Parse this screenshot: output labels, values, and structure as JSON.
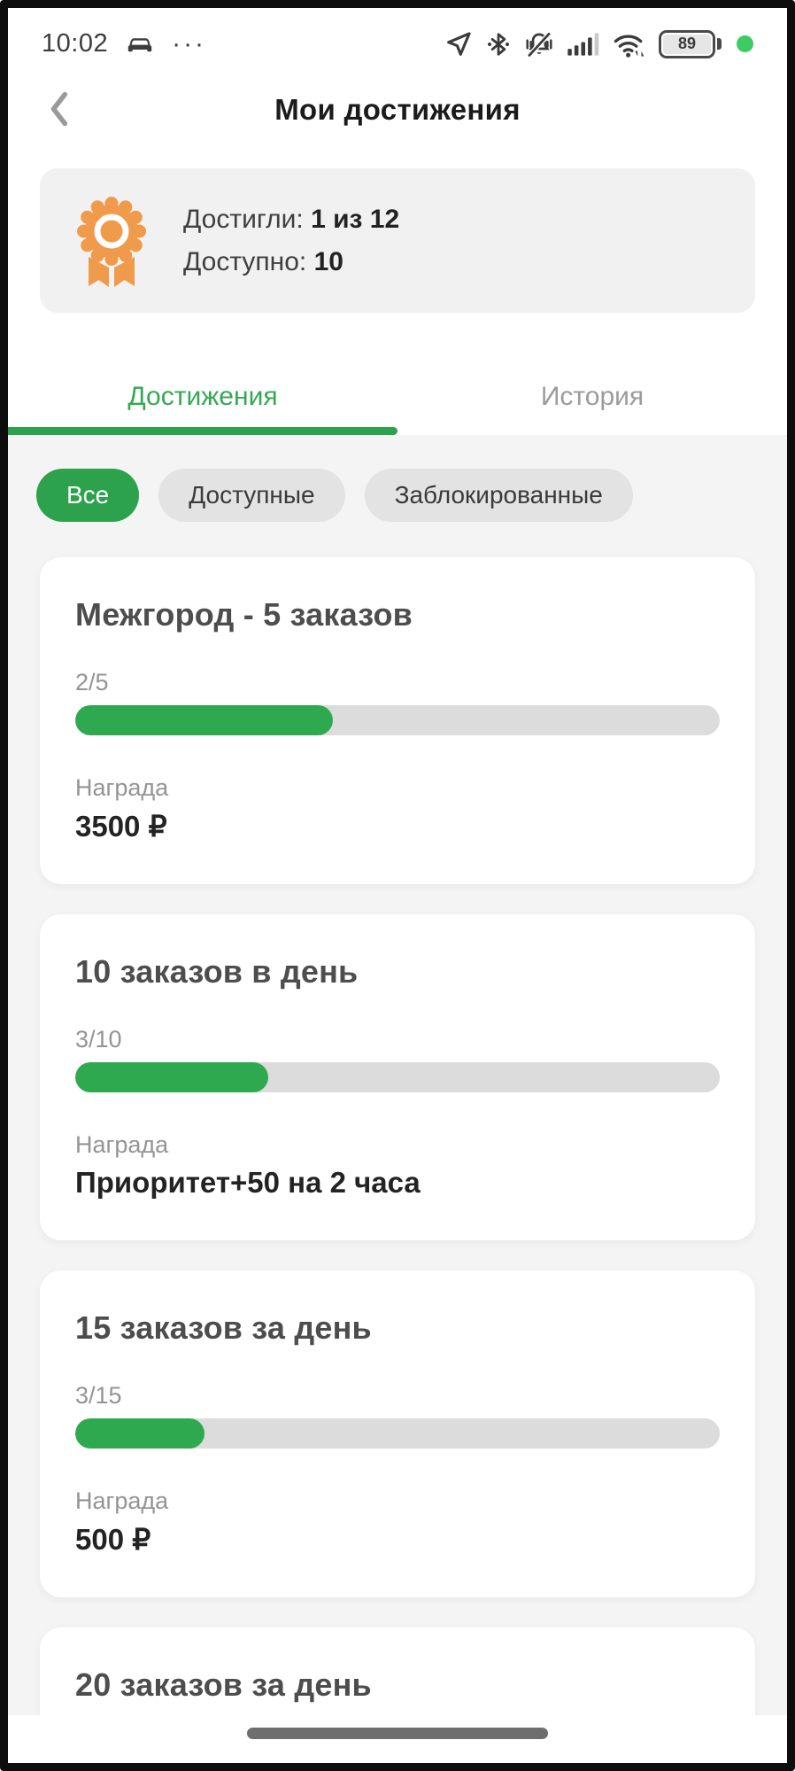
{
  "status_bar": {
    "time": "10:02",
    "overflow_dots": "···",
    "battery_percent": "89",
    "left_icons": [
      "car-icon",
      "overflow-dots"
    ],
    "right_icons": [
      "navigation-icon",
      "bluetooth-icon",
      "mute-vibrate-icon",
      "signal-icon",
      "wifi-icon",
      "battery-icon",
      "online-status-dot"
    ]
  },
  "header": {
    "title": "Мои достижения"
  },
  "summary": {
    "icon": "medal-rosette-icon",
    "achieved_label": "Достигли:",
    "achieved_value": "1 из 12",
    "available_label": "Доступно:",
    "available_value": "10"
  },
  "tabs": [
    {
      "label": "Достижения",
      "active": true
    },
    {
      "label": "История",
      "active": false
    }
  ],
  "filters": [
    {
      "label": "Все",
      "active": true
    },
    {
      "label": "Доступные",
      "active": false
    },
    {
      "label": "Заблокированные",
      "active": false
    }
  ],
  "achievements": [
    {
      "title": "Межгород - 5 заказов",
      "progress_label": "2/5",
      "progress_percent": 40,
      "reward_label": "Награда",
      "reward_value": "3500 ₽"
    },
    {
      "title": "10 заказов в день",
      "progress_label": "3/10",
      "progress_percent": 30,
      "reward_label": "Награда",
      "reward_value": "Приоритет+50 на 2 часа"
    },
    {
      "title": "15 заказов за день",
      "progress_label": "3/15",
      "progress_percent": 20,
      "reward_label": "Награда",
      "reward_value": "500 ₽"
    },
    {
      "title": "20 заказов за день"
    }
  ],
  "colors": {
    "accent_green": "#2ca24c",
    "progress_green": "#2fa950",
    "tab_active_green": "#35a854",
    "medal_orange": "#f09a4b",
    "track_gray": "#dcdcdc",
    "page_gray": "#f4f4f5",
    "online_dot_green": "#3ecb63"
  }
}
